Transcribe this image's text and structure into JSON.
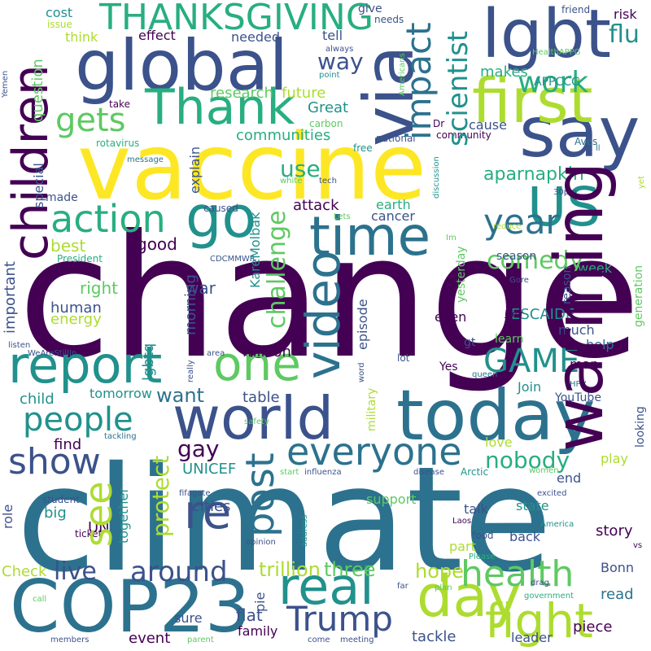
{
  "palette": {
    "purple_dark": "#440154",
    "indigo": "#3b528b",
    "blue_teal": "#2c728e",
    "teal": "#21918c",
    "green": "#28ae80",
    "green_light": "#5ec962",
    "lime": "#addc30",
    "yellow": "#fde725"
  },
  "words": {
    "change": "change",
    "climate": "climate",
    "vaccine": "vaccine",
    "global": "global",
    "lgbt": "lgbt",
    "say": "say",
    "first": "first",
    "thank": "Thank",
    "via": "via",
    "thanksgiving": "THANKSGIVING",
    "today": "today",
    "world": "world",
    "warming": "warming",
    "cop23": "COP23",
    "time": "time",
    "children": "children",
    "us": "US",
    "report": "report",
    "one": "one",
    "go": "go",
    "day": "day",
    "real": "real",
    "fight": "fight",
    "health": "health",
    "video": "video",
    "post": "post",
    "everyone": "everyone",
    "show": "show",
    "people": "people",
    "trump": "Trump",
    "re": "re",
    "action": "action",
    "impact": "impact",
    "work": "work",
    "year": "year",
    "game": "GAME",
    "see": "see",
    "gets": "gets",
    "around": "around",
    "live": "live",
    "scientist": "scientist",
    "challenge": "challenge",
    "comedy": "comedy",
    "nobody": "nobody",
    "aparnapkin": "aparnapkin",
    "flu": "flu",
    "way": "way",
    "use": "use",
    "gay": "gay",
    "protect": "protect",
    "trillion": "trillion",
    "three": "three",
    "research": "research",
    "future": "future",
    "great": "Great",
    "cause": "cause",
    "communities": "communities",
    "explain": "explain",
    "karemolbak": "KareMolbak",
    "attack": "attack",
    "cancer": "cancer",
    "earth": "earth",
    "best": "best",
    "good": "good",
    "morning": "morning",
    "war": "war",
    "human": "human",
    "energy": "energy",
    "right": "right",
    "important": "important",
    "lgbtq": "lgbtq",
    "escaide": "ESCAIDE",
    "much": "much",
    "help": "help",
    "week": "week",
    "yesterday": "yesterday",
    "episode": "episode",
    "million": "million",
    "want": "want",
    "table": "table",
    "tomorrow": "tomorrow",
    "child": "child",
    "find": "find",
    "unicef": "UNICEF",
    "youtube": "YouTube",
    "join": "Join",
    "yes": "Yes",
    "love": "love",
    "end": "end",
    "play": "play",
    "state": "state",
    "talk": "talk",
    "support": "support",
    "part": "part",
    "back": "back",
    "story": "story",
    "hope": "hope",
    "bonn": "Bonn",
    "read": "read",
    "piece": "piece",
    "leader": "leader",
    "tackle": "tackle",
    "flat": "flat",
    "family": "family",
    "pie": "pie",
    "sure": "sure",
    "event": "event",
    "check": "Check",
    "un": "UN",
    "cities": "cities",
    "big": "big",
    "together": "together",
    "role": "role",
    "military": "military",
    "gt": "gt",
    "lot": "lot",
    "even": "even",
    "man": "man",
    "learn": "learn",
    "looking": "looking",
    "generation": "generation",
    "reason": "reason",
    "season": "season",
    "cost": "cost",
    "give": "give",
    "needs": "needs",
    "friend": "friend",
    "risk": "risk",
    "issue": "issue",
    "think": "think",
    "effect": "effect",
    "needed": "needed",
    "tell": "tell",
    "makes": "makes",
    "appccg": "APPCCG",
    "healthappg": "HealthAPPG",
    "always": "always",
    "americans": "Americans",
    "point": "point",
    "question": "question",
    "yemen": "Yemen",
    "take": "take",
    "carbon": "carbon",
    "dr": "Dr",
    "national": "national",
    "community": "community",
    "rotavirus": "rotavirus",
    "free": "free",
    "aves": "Aves",
    "ll": "ll",
    "message": "message",
    "special": "special",
    "made": "made",
    "white": "white",
    "tech": "tech",
    "discussion": "discussion",
    "30pm": "30pm",
    "yet": "yet",
    "caused": "caused",
    "lets": "Lets",
    "im": "Im",
    "reduce": "reduce",
    "president": "President",
    "cdcmmwr": "CDCMMWR",
    "gore": "Gore",
    "juror": "juror",
    "listen": "listen",
    "wearestillin": "WeAreStillIn",
    "area": "area",
    "really": "really",
    "word": "word",
    "queen": "queen",
    "hpv": "HPV",
    "safety": "safety",
    "tackling": "tackling",
    "start": "start",
    "influenza": "influenza",
    "disease": "disease",
    "arctic": "Arctic",
    "women": "women",
    "excited": "excited",
    "student": "student",
    "fifagate": "fifagate",
    "address": "address",
    "ticket": "ticket",
    "opinion": "opinion",
    "laos": "Laos",
    "food": "food",
    "america": "America",
    "please": "Please",
    "vs": "vs",
    "call": "call",
    "far": "far",
    "plan": "plan",
    "drag": "drag",
    "government": "government",
    "members": "members",
    "parent": "parent",
    "come": "come",
    "meeting": "meeting"
  }
}
